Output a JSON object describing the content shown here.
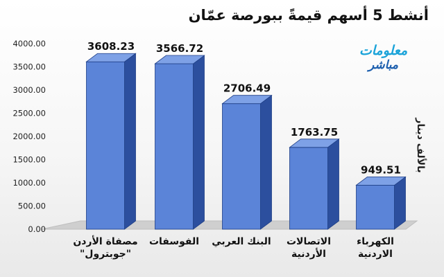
{
  "title": "أنشط 5 أسهم قيمةً ببورصة عمّان",
  "brand": {
    "line1": "معلومات",
    "line2": "مباشر"
  },
  "colors": {
    "bar_front": "#5b84d8",
    "bar_side": "#2c4f9e",
    "bar_top": "#7ea1e6",
    "bar_edge": "#1f3f86"
  },
  "chart_data": {
    "type": "bar",
    "title": "أنشط 5 أسهم قيمةً ببورصة عمّان",
    "ylabel": "بالألف دينار",
    "xlabel": "",
    "ylim": [
      0,
      4000
    ],
    "yticks": [
      "4000.00",
      "3500.00",
      "3000.00",
      "2500.00",
      "2000.00",
      "1500.00",
      "1000.00",
      "500.00",
      "0.00"
    ],
    "categories": [
      "مصفاة الأردن\n\"جوبترول\"",
      "الفوسفات",
      "البنك العربي",
      "الاتصالات\nالأردنية",
      "الكهرباء\nالاردنية"
    ],
    "values": [
      3608.23,
      3566.72,
      2706.49,
      1763.75,
      949.51
    ],
    "value_labels": [
      "3608.23",
      "3566.72",
      "2706.49",
      "1763.75",
      "949.51"
    ],
    "grid": false,
    "legend": "none"
  }
}
